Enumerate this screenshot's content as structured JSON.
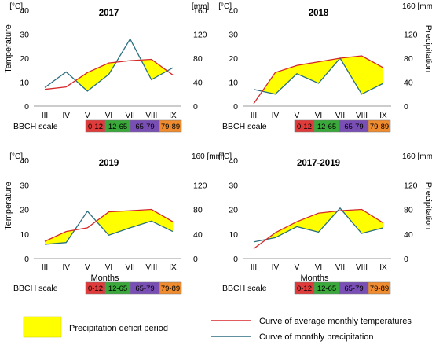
{
  "chart_data": [
    {
      "type": "line",
      "title": "2017",
      "categories": [
        "III",
        "IV",
        "V",
        "VI",
        "VII",
        "VIII",
        "IX"
      ],
      "y_left": {
        "unit": "[°C]",
        "label": "Temperature",
        "range": [
          0,
          40
        ],
        "ticks": [
          "0",
          "10",
          "20",
          "30",
          "40"
        ]
      },
      "y_right": {
        "unit": "[mm]",
        "label": "",
        "range": [
          0,
          160
        ],
        "ticks": [
          "0",
          "40",
          "80",
          "120",
          "160"
        ]
      },
      "series": [
        {
          "name": "Curve of average monthly temperatures",
          "axis": "left",
          "color": "#d62728",
          "values": [
            7,
            8,
            14,
            18,
            19,
            19.5,
            13
          ]
        },
        {
          "name": "Curve of monthly precipitation",
          "axis": "right",
          "color": "#2a6f7f",
          "values": [
            31,
            57,
            25,
            53,
            112,
            44,
            64
          ]
        }
      ],
      "deficit_fill_color": "#ffff00",
      "bbch": {
        "label": "BBCH scale",
        "stages": [
          "0-12",
          "12-65",
          "65-79",
          "79-89"
        ]
      }
    },
    {
      "type": "line",
      "title": "2018",
      "categories": [
        "III",
        "IV",
        "V",
        "VI",
        "VII",
        "VIII",
        "IX"
      ],
      "y_left": {
        "unit": "[°C]",
        "label": "",
        "range": [
          0,
          40
        ],
        "ticks": [
          "0",
          "10",
          "20",
          "30",
          "40"
        ]
      },
      "y_right": {
        "unit": "160 [mm]",
        "label": "Precipitation",
        "range": [
          0,
          160
        ],
        "ticks": [
          "0",
          "40",
          "80",
          "120",
          ""
        ]
      },
      "series": [
        {
          "name": "Curve of average monthly temperatures",
          "axis": "left",
          "color": "#d62728",
          "values": [
            1,
            14,
            17,
            18.5,
            20,
            21,
            16
          ]
        },
        {
          "name": "Curve of monthly precipitation",
          "axis": "right",
          "color": "#2a6f7f",
          "values": [
            28,
            20,
            54,
            38,
            80,
            20,
            38
          ]
        }
      ],
      "deficit_fill_color": "#ffff00",
      "bbch": {
        "label": "BBCH scale",
        "stages": [
          "0-12",
          "12-65",
          "65-79",
          "79-89"
        ]
      }
    },
    {
      "type": "line",
      "title": "2019",
      "categories": [
        "III",
        "IV",
        "V",
        "VI",
        "VII",
        "VIII",
        "IX"
      ],
      "y_left": {
        "unit": "[°C]",
        "label": "Temperature",
        "range": [
          0,
          40
        ],
        "ticks": [
          "0",
          "10",
          "20",
          "30",
          "40"
        ]
      },
      "y_right": {
        "unit": "160 [mm]",
        "label": "",
        "range": [
          0,
          160
        ],
        "ticks": [
          "0",
          "40",
          "80",
          "120",
          ""
        ]
      },
      "xlabel": "Months",
      "series": [
        {
          "name": "Curve of average monthly temperatures",
          "axis": "left",
          "color": "#d62728",
          "values": [
            7,
            11,
            12.5,
            19,
            19.5,
            20,
            15
          ]
        },
        {
          "name": "Curve of monthly precipitation",
          "axis": "right",
          "color": "#2a6f7f",
          "values": [
            23,
            26,
            77,
            38,
            50,
            61,
            44
          ]
        }
      ],
      "deficit_fill_color": "#ffff00",
      "bbch": {
        "label": "BBCH scale",
        "stages": [
          "0-12",
          "12-65",
          "65-79",
          "79-89"
        ]
      }
    },
    {
      "type": "line",
      "title": "2017-2019",
      "categories": [
        "III",
        "IV",
        "V",
        "VI",
        "VII",
        "VIII",
        "IX"
      ],
      "y_left": {
        "unit": "[°C]",
        "label": "",
        "range": [
          0,
          40
        ],
        "ticks": [
          "0",
          "10",
          "20",
          "30",
          "40"
        ]
      },
      "y_right": {
        "unit": "160 [mm]",
        "label": "Precipitation",
        "range": [
          0,
          160
        ],
        "ticks": [
          "0",
          "40",
          "80",
          "120",
          ""
        ]
      },
      "xlabel": "Months",
      "series": [
        {
          "name": "Curve of average monthly temperatures",
          "axis": "left",
          "color": "#d62728",
          "values": [
            4,
            10.5,
            15,
            18.5,
            19.5,
            20,
            14.5
          ]
        },
        {
          "name": "Curve of monthly precipitation",
          "axis": "right",
          "color": "#2a6f7f",
          "values": [
            27,
            34,
            52,
            43,
            82,
            41,
            50
          ]
        }
      ],
      "deficit_fill_color": "#ffff00",
      "bbch": {
        "label": "BBCH scale",
        "stages": [
          "0-12",
          "12-65",
          "65-79",
          "79-89"
        ]
      }
    }
  ],
  "bbch_colors": [
    "#e03b3b",
    "#3aa83a",
    "#7a4fb5",
    "#ef8c2f"
  ],
  "legend": {
    "deficit": "Precipitation deficit period",
    "temperature": "Curve of average monthly temperatures",
    "precipitation": "Curve of monthly precipitation"
  }
}
